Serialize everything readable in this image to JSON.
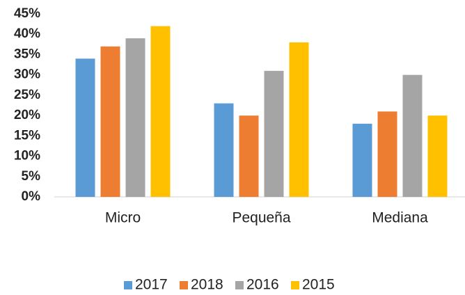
{
  "chart_data": {
    "type": "bar",
    "categories": [
      "Micro",
      "Pequeña",
      "Mediana"
    ],
    "series": [
      {
        "name": "2017",
        "color": "#5b9bd5",
        "values": [
          34,
          23,
          18
        ]
      },
      {
        "name": "2018",
        "color": "#ed7d31",
        "values": [
          37,
          20,
          21
        ]
      },
      {
        "name": "2016",
        "color": "#a5a5a5",
        "values": [
          39,
          31,
          30
        ]
      },
      {
        "name": "2015",
        "color": "#ffc000",
        "values": [
          42,
          38,
          20
        ]
      }
    ],
    "ylim": [
      0,
      45
    ],
    "yticks": [
      {
        "value": 0,
        "label": "0%"
      },
      {
        "value": 5,
        "label": "5%"
      },
      {
        "value": 10,
        "label": "10%"
      },
      {
        "value": 15,
        "label": "15%"
      },
      {
        "value": 20,
        "label": "20%"
      },
      {
        "value": 25,
        "label": "25%"
      },
      {
        "value": 30,
        "label": "30%"
      },
      {
        "value": 35,
        "label": "35%"
      },
      {
        "value": 40,
        "label": "40%"
      },
      {
        "value": 45,
        "label": "45%"
      }
    ],
    "grid": false,
    "legend": "bottom"
  }
}
